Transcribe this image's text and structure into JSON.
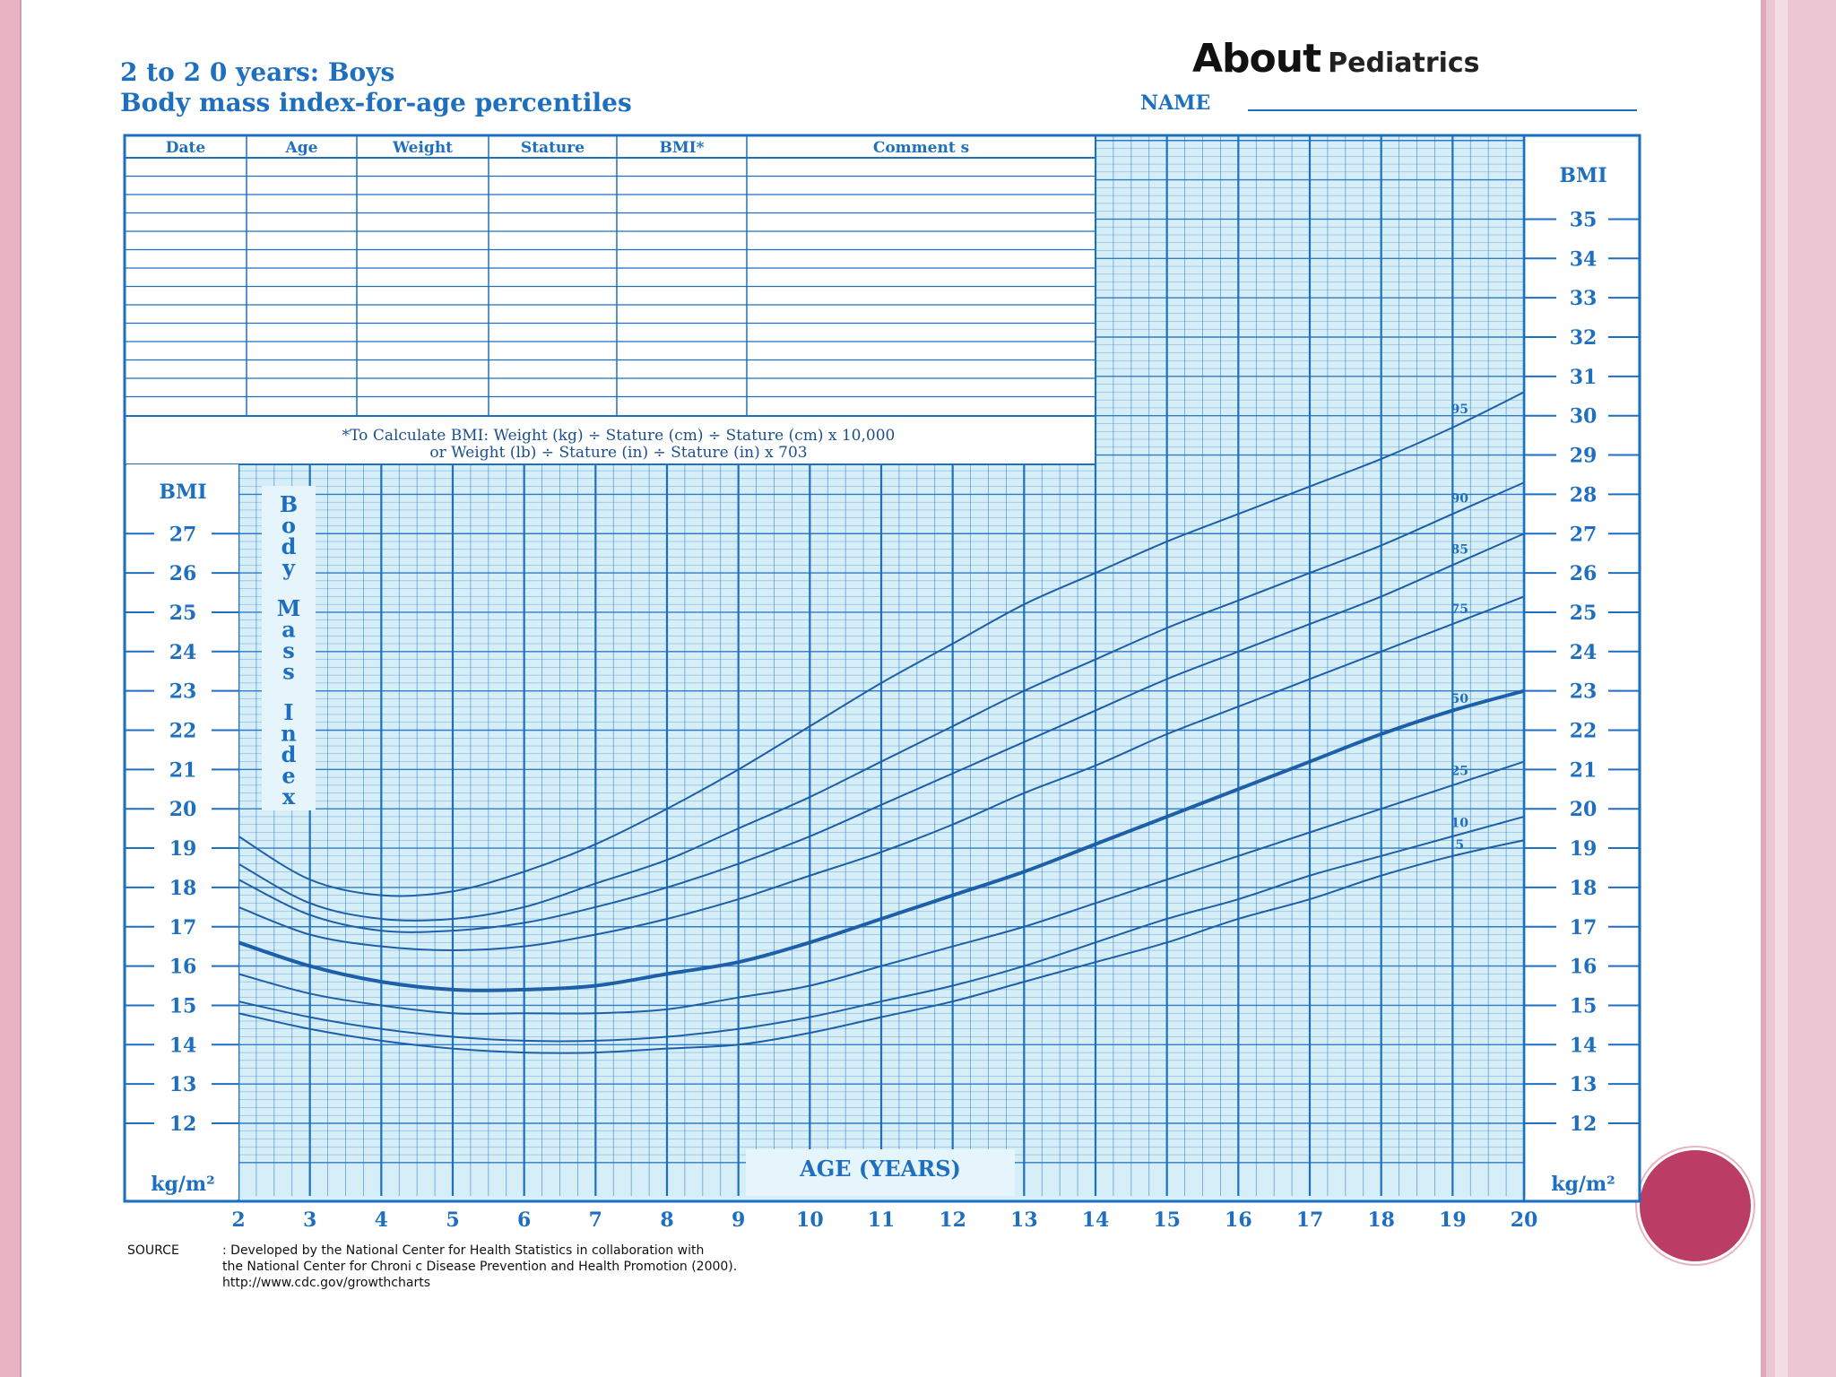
{
  "header": {
    "title_line1": "2 to 2 0 years:   Boys",
    "title_line2": "Body mass index-for-age percentiles",
    "logo_word": "About",
    "logo_sub": "Pediatrics",
    "name_label": "NAME"
  },
  "record_table": {
    "columns": [
      "Date",
      "Age",
      "Weight",
      "Stature",
      "BMI*",
      "Comment s"
    ],
    "formula_line1": "*To Calculate BMI: Weight (kg) ÷ Stature (cm) ÷ Stature (cm) x 10,000",
    "formula_line2": "or Weight (lb) ÷ Stature (in) ÷ Stature (in) x 703"
  },
  "source_note": {
    "label": "SOURCE",
    "line1": ": Developed  by the National  Center  for Health  Statistics  in collaboration  with",
    "line2": "the National  Center  for Chroni c Disease  Prevention  and Health  Promotion  (2000).",
    "line3": "http://www.cdc.gov/growthcharts"
  },
  "colors": {
    "grid_line": "#1e6fbf",
    "chart_bg": "#d6eef7",
    "ink": "#1e6fbf",
    "frame": "#e8b4c4",
    "accent_circle": "#bb3d66"
  },
  "chart_data": {
    "type": "line",
    "title": "Body mass index-for-age percentiles",
    "xlabel": "AGE (YEARS)",
    "ylabel": "Body Mass Index",
    "y_unit": "kg/m²",
    "y_axis_header": "BMI",
    "xlim": [
      2,
      20
    ],
    "ylim": [
      11,
      37
    ],
    "x_ticks": [
      2,
      3,
      4,
      5,
      6,
      7,
      8,
      9,
      10,
      11,
      12,
      13,
      14,
      15,
      16,
      17,
      18,
      19,
      20
    ],
    "x_tick_labels": [
      "2",
      "3",
      "4",
      "5",
      "6",
      "7",
      "8",
      "9",
      "10",
      "11",
      "12",
      "13",
      "14",
      "15",
      "16",
      "17",
      "18",
      "19",
      "20"
    ],
    "y_ticks_left": [
      12,
      13,
      14,
      15,
      16,
      17,
      18,
      19,
      20,
      21,
      22,
      23,
      24,
      25,
      26,
      27
    ],
    "y_ticks_right": [
      12,
      13,
      14,
      15,
      16,
      17,
      18,
      19,
      20,
      21,
      22,
      23,
      24,
      25,
      26,
      27,
      28,
      29,
      30,
      31,
      32,
      33,
      34,
      35
    ],
    "grid": true,
    "x": [
      2,
      3,
      4,
      5,
      6,
      7,
      8,
      9,
      10,
      11,
      12,
      13,
      14,
      15,
      16,
      17,
      18,
      19,
      20
    ],
    "series": [
      {
        "name": "95",
        "values": [
          19.3,
          18.2,
          17.8,
          17.9,
          18.4,
          19.1,
          20.0,
          21.0,
          22.1,
          23.2,
          24.2,
          25.2,
          26.0,
          26.8,
          27.5,
          28.2,
          28.9,
          29.7,
          30.6
        ]
      },
      {
        "name": "90",
        "values": [
          18.6,
          17.6,
          17.2,
          17.2,
          17.5,
          18.1,
          18.7,
          19.5,
          20.3,
          21.2,
          22.1,
          23.0,
          23.8,
          24.6,
          25.3,
          26.0,
          26.7,
          27.5,
          28.3
        ]
      },
      {
        "name": "85",
        "values": [
          18.2,
          17.3,
          16.9,
          16.9,
          17.1,
          17.5,
          18.0,
          18.6,
          19.3,
          20.1,
          20.9,
          21.7,
          22.5,
          23.3,
          24.0,
          24.7,
          25.4,
          26.2,
          27.0
        ]
      },
      {
        "name": "75",
        "values": [
          17.5,
          16.8,
          16.5,
          16.4,
          16.5,
          16.8,
          17.2,
          17.7,
          18.3,
          18.9,
          19.6,
          20.4,
          21.1,
          21.9,
          22.6,
          23.3,
          24.0,
          24.7,
          25.4
        ]
      },
      {
        "name": "50",
        "values": [
          16.6,
          16.0,
          15.6,
          15.4,
          15.4,
          15.5,
          15.8,
          16.1,
          16.6,
          17.2,
          17.8,
          18.4,
          19.1,
          19.8,
          20.5,
          21.2,
          21.9,
          22.5,
          23.0
        ]
      },
      {
        "name": "25",
        "values": [
          15.8,
          15.3,
          15.0,
          14.8,
          14.8,
          14.8,
          14.9,
          15.2,
          15.5,
          16.0,
          16.5,
          17.0,
          17.6,
          18.2,
          18.8,
          19.4,
          20.0,
          20.6,
          21.2
        ]
      },
      {
        "name": "10",
        "values": [
          15.1,
          14.7,
          14.4,
          14.2,
          14.1,
          14.1,
          14.2,
          14.4,
          14.7,
          15.1,
          15.5,
          16.0,
          16.6,
          17.2,
          17.7,
          18.3,
          18.8,
          19.3,
          19.8
        ]
      },
      {
        "name": "5",
        "values": [
          14.8,
          14.4,
          14.1,
          13.9,
          13.8,
          13.8,
          13.9,
          14.0,
          14.3,
          14.7,
          15.1,
          15.6,
          16.1,
          16.6,
          17.2,
          17.7,
          18.3,
          18.8,
          19.2
        ]
      }
    ]
  }
}
